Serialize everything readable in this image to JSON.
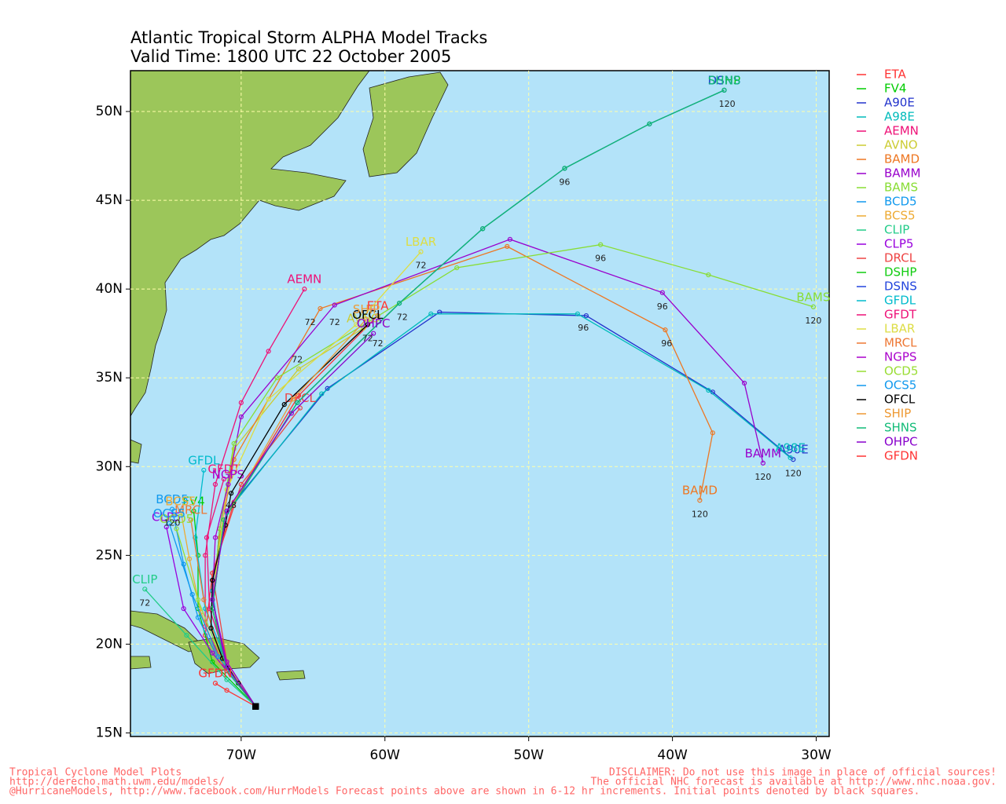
{
  "chart_data": {
    "type": "line",
    "title": "Atlantic Tropical Storm ALPHA Model Tracks",
    "subtitle": "Valid Time: 1800 UTC 22 October 2005",
    "xlim": [
      -77.7,
      -29.1
    ],
    "ylim": [
      14.8,
      52.3
    ],
    "xticks": [
      {
        "value": -70,
        "label": "70W"
      },
      {
        "value": -60,
        "label": "60W"
      },
      {
        "value": -50,
        "label": "50W"
      },
      {
        "value": -40,
        "label": "40W"
      },
      {
        "value": -30,
        "label": "30W"
      }
    ],
    "yticks": [
      {
        "value": 15,
        "label": "15N"
      },
      {
        "value": 20,
        "label": "20N"
      },
      {
        "value": 25,
        "label": "25N"
      },
      {
        "value": 30,
        "label": "30N"
      },
      {
        "value": 35,
        "label": "35N"
      },
      {
        "value": 40,
        "label": "40N"
      },
      {
        "value": 45,
        "label": "45N"
      },
      {
        "value": 50,
        "label": "50N"
      }
    ],
    "grid": true,
    "legend": "right",
    "series": [
      {
        "name": "ETA",
        "color": "#ff3333",
        "x": [
          -69,
          -71,
          -72.5,
          -72,
          -70.5,
          -66,
          -60.5
        ],
        "values": [
          16.5,
          18.5,
          20.5,
          24,
          28,
          34,
          38.5
        ]
      },
      {
        "name": "FV4",
        "color": "#00cc00",
        "x": [
          -69,
          -72,
          -73,
          -73,
          -73.3
        ],
        "values": [
          16.5,
          19,
          22,
          25,
          27.5
        ]
      },
      {
        "name": "A90E",
        "color": "#2233cc",
        "x": [
          -69,
          -71.3,
          -72,
          -71,
          -64,
          -56.2,
          -46,
          -37.2,
          -31.6
        ],
        "values": [
          16.5,
          19,
          23,
          27.5,
          34.4,
          38.7,
          38.5,
          34.2,
          30.4
        ]
      },
      {
        "name": "A98E",
        "color": "#00bbbb",
        "x": [
          -69,
          -71.3,
          -72,
          -71,
          -64.4,
          -56.8,
          -46.6,
          -37.5,
          -31.8
        ],
        "values": [
          16.5,
          19,
          23,
          27.4,
          34.1,
          38.6,
          38.6,
          34.3,
          30.5
        ]
      },
      {
        "name": "AEMN",
        "color": "#ee1177",
        "x": [
          -69,
          -71,
          -72.5,
          -72.5,
          -71.8,
          -70,
          -68.1,
          -65.6
        ],
        "values": [
          16.5,
          18.5,
          21,
          25,
          29,
          33.6,
          36.5,
          40
        ]
      },
      {
        "name": "AVNO",
        "color": "#cccc33",
        "x": [
          -69,
          -71,
          -72,
          -71.5,
          -70.5,
          -66,
          -61.5
        ],
        "values": [
          16.5,
          18.8,
          22,
          26.5,
          31,
          35.5,
          37.8
        ]
      },
      {
        "name": "BAMD",
        "color": "#ee7722",
        "x": [
          -69,
          -71,
          -72,
          -71.5,
          -70.5,
          -64.5,
          -51.5,
          -40.5,
          -37.2,
          -38.1
        ],
        "values": [
          16.5,
          18.8,
          22,
          26,
          30.4,
          38.9,
          42.4,
          37.7,
          31.9,
          28.1
        ]
      },
      {
        "name": "BAMM",
        "color": "#9900cc",
        "x": [
          -69,
          -71,
          -72,
          -71.5,
          -70,
          -63.5,
          -51.3,
          -40.7,
          -35,
          -33.7
        ],
        "values": [
          16.5,
          18.8,
          22,
          26.5,
          32.8,
          39.1,
          42.8,
          39.8,
          34.7,
          30.2
        ]
      },
      {
        "name": "BAMS",
        "color": "#88dd33",
        "x": [
          -69,
          -71,
          -72,
          -71.5,
          -70.5,
          -67.5,
          -55,
          -45,
          -37.5,
          -30.2
        ],
        "values": [
          16.5,
          18.8,
          22,
          26.5,
          31.3,
          35,
          41.2,
          42.5,
          40.8,
          39
        ]
      },
      {
        "name": "BCD5",
        "color": "#1199ee",
        "x": [
          -69,
          -71.5,
          -73,
          -74,
          -74.8
        ],
        "values": [
          16.5,
          19,
          21.5,
          24.5,
          27.6
        ]
      },
      {
        "name": "BCS5",
        "color": "#eeaa33",
        "x": [
          -69,
          -71.5,
          -72.8,
          -73.6,
          -74.2
        ],
        "values": [
          16.5,
          19,
          21.8,
          24.8,
          27.5
        ]
      },
      {
        "name": "CLIP",
        "color": "#22cc88",
        "x": [
          -69,
          -71,
          -73.8,
          -76.7
        ],
        "values": [
          16.5,
          18,
          20.5,
          23.1
        ]
      },
      {
        "name": "CLP5",
        "color": "#9900dd",
        "x": [
          -69,
          -72,
          -74,
          -75.2
        ],
        "values": [
          16.5,
          19.5,
          22,
          26.6
        ]
      },
      {
        "name": "DRCL",
        "color": "#ee4444",
        "x": [
          -69,
          -71,
          -72,
          -70,
          -65.9
        ],
        "values": [
          16.5,
          19,
          24,
          29,
          33.3
        ]
      },
      {
        "name": "DSHP",
        "color": "#11cc11",
        "x": [
          -69,
          -71,
          -72,
          -71.2,
          -66.1,
          -59,
          -53.2,
          -47.5,
          -41.6,
          -36.4
        ],
        "values": [
          16.5,
          18.5,
          22,
          27,
          33.6,
          39.2,
          43.4,
          46.8,
          49.3,
          51.2
        ]
      },
      {
        "name": "DSNS",
        "color": "#2244dd",
        "x": [
          -69,
          -71,
          -72,
          -71.2,
          -66.1,
          -59,
          -53.2,
          -47.5,
          -41.6,
          -36.4
        ],
        "values": [
          16.5,
          18.5,
          22,
          27,
          33.6,
          39.2,
          43.4,
          46.8,
          49.3,
          51.2
        ]
      },
      {
        "name": "GFDL",
        "color": "#00bbcc",
        "x": [
          -69,
          -71,
          -72.5,
          -73.2,
          -72.6
        ],
        "values": [
          16.5,
          19,
          22,
          26,
          29.8
        ]
      },
      {
        "name": "GFDT",
        "color": "#ee1177",
        "x": [
          -69,
          -71,
          -72.2,
          -72.4,
          -71.2
        ],
        "values": [
          16.5,
          19,
          22,
          26,
          29.3
        ]
      },
      {
        "name": "LBAR",
        "color": "#dddd44",
        "x": [
          -69,
          -71,
          -72,
          -71,
          -68.1,
          -62,
          -57.5
        ],
        "values": [
          16.5,
          18.8,
          22.5,
          28.7,
          33.8,
          38,
          42.1
        ]
      },
      {
        "name": "MRCL",
        "color": "#ee7733",
        "x": [
          -69,
          -71.3,
          -72.6,
          -73.5
        ],
        "values": [
          16.5,
          19,
          22.5,
          27
        ]
      },
      {
        "name": "NGPS",
        "color": "#aa00cc",
        "x": [
          -69,
          -71,
          -72,
          -71.8,
          -70.9
        ],
        "values": [
          16.5,
          19,
          22.5,
          26,
          29
        ]
      },
      {
        "name": "OCD5",
        "color": "#99dd33",
        "x": [
          -69,
          -71.4,
          -73,
          -74.5
        ],
        "values": [
          16.5,
          19.2,
          22.5,
          26.5
        ]
      },
      {
        "name": "OCS5",
        "color": "#1199ee",
        "x": [
          -69,
          -71.6,
          -73.4,
          -75
        ],
        "values": [
          16.5,
          19.3,
          22.8,
          26.8
        ]
      },
      {
        "name": "OFCL",
        "color": "#000000",
        "x": [
          -69,
          -70.2,
          -71.3,
          -72.1,
          -72,
          -71.1,
          -70.7,
          -67,
          -61.2
        ],
        "values": [
          16.5,
          17.8,
          19.2,
          20.9,
          23.6,
          26.7,
          28.5,
          33.5,
          38
        ]
      },
      {
        "name": "SHIP",
        "color": "#ee9933",
        "x": [
          -69,
          -71,
          -72,
          -71.2,
          -66.4,
          -61.3
        ],
        "values": [
          16.5,
          18.5,
          22,
          27,
          33.8,
          38.3
        ]
      },
      {
        "name": "SHNS",
        "color": "#11bb77",
        "x": [
          -69,
          -71,
          -72,
          -71.2,
          -66.1,
          -59,
          -53.2,
          -47.5,
          -41.6,
          -36.4
        ],
        "values": [
          16.5,
          18.5,
          22,
          27,
          33.6,
          39.2,
          43.4,
          46.8,
          49.3,
          51.2
        ]
      },
      {
        "name": "OHPC",
        "color": "#8800cc",
        "x": [
          -69,
          -71,
          -72,
          -71,
          -66.5,
          -60.8
        ],
        "values": [
          16.5,
          18.7,
          22.5,
          27.5,
          33,
          37.5
        ]
      },
      {
        "name": "GFDN",
        "color": "#ff3333",
        "x": [
          -69,
          -71,
          -71.8
        ],
        "values": [
          16.5,
          17.4,
          17.8
        ]
      }
    ],
    "annotations": [
      {
        "text": "96",
        "x": -47.5,
        "y": 46.0
      },
      {
        "text": "120",
        "x": -36.2,
        "y": 50.4
      },
      {
        "text": "72",
        "x": -58.8,
        "y": 38.4
      },
      {
        "text": "96",
        "x": -45,
        "y": 41.7
      },
      {
        "text": "120",
        "x": -30.2,
        "y": 38.2
      },
      {
        "text": "96",
        "x": -40.7,
        "y": 39.0
      },
      {
        "text": "120",
        "x": -33.7,
        "y": 29.4
      },
      {
        "text": "96",
        "x": -40.4,
        "y": 36.9
      },
      {
        "text": "120",
        "x": -38.1,
        "y": 27.3
      },
      {
        "text": "120",
        "x": -31.6,
        "y": 29.6
      },
      {
        "text": "96",
        "x": -46.2,
        "y": 37.8
      },
      {
        "text": "72",
        "x": -57.5,
        "y": 41.3
      },
      {
        "text": "72",
        "x": -65.2,
        "y": 38.1
      },
      {
        "text": "72",
        "x": -63.5,
        "y": 38.1
      },
      {
        "text": "72",
        "x": -66.1,
        "y": 36.0
      },
      {
        "text": "72",
        "x": -61.2,
        "y": 37.2
      },
      {
        "text": "72",
        "x": -60.5,
        "y": 36.9
      },
      {
        "text": "72",
        "x": -76.7,
        "y": 22.3
      },
      {
        "text": "48",
        "x": -70.7,
        "y": 27.8
      },
      {
        "text": "120",
        "x": -74.8,
        "y": 26.8
      }
    ],
    "footer_left": [
      "Tropical Cyclone Model Plots",
      "http://derecho.math.uwm.edu/models/",
      "@HurricaneModels, http://www.facebook.com/HurrModels  Forecast points above are shown in 6-12 hr increments. Initial points denoted by black squares."
    ],
    "footer_right": [
      "DISCLAIMER: Do not use this image in place of official sources!",
      "The official NHC forecast is available at http://www.nhc.noaa.gov."
    ]
  }
}
